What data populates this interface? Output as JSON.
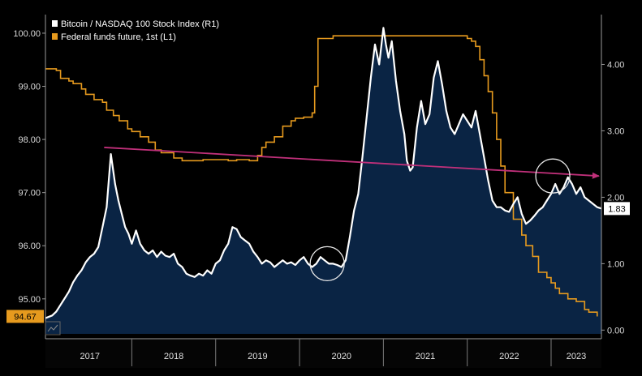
{
  "chart_data": {
    "type": "line",
    "legend_placement": "top-left",
    "legend": [
      {
        "label": "Bitcoin / NASDAQ 100 Stock Index (R1)",
        "color": "#ffffff"
      },
      {
        "label": "Federal funds future, 1st (L1)",
        "color": "#e69a1e"
      }
    ],
    "x_tick_labels": [
      "2017",
      "2018",
      "2019",
      "2020",
      "2021",
      "2022",
      "2023"
    ],
    "xlim": [
      2016.97,
      2023.6
    ],
    "y_left": {
      "ticks": [
        "95.00",
        "96.00",
        "97.00",
        "98.00",
        "99.00",
        "100.00"
      ],
      "range": [
        94.25,
        100.35
      ]
    },
    "y_right": {
      "ticks": [
        "0.00",
        "1.00",
        "2.00",
        "3.00",
        "4.00"
      ],
      "range": [
        -0.13,
        4.75
      ]
    },
    "left_last_value": "94.67",
    "right_last_value": "1.83",
    "colors": {
      "background": "#000000",
      "area_fill": "#0a2444",
      "btc_line": "#ffffff",
      "fed_line": "#e69a1e",
      "trend_line": "#c0307a",
      "left_badge": "#e69a1e",
      "right_badge": "#ffffff"
    },
    "series": [
      {
        "name": "Bitcoin / NASDAQ 100 Stock Index (R1)",
        "axis": "right",
        "x": [
          2016.97,
          2017.05,
          2017.1,
          2017.15,
          2017.2,
          2017.25,
          2017.3,
          2017.35,
          2017.4,
          2017.45,
          2017.5,
          2017.55,
          2017.6,
          2017.65,
          2017.7,
          2017.75,
          2017.8,
          2017.84,
          2017.88,
          2017.92,
          2017.96,
          2018.0,
          2018.05,
          2018.1,
          2018.15,
          2018.2,
          2018.25,
          2018.3,
          2018.35,
          2018.4,
          2018.45,
          2018.5,
          2018.55,
          2018.6,
          2018.65,
          2018.7,
          2018.75,
          2018.8,
          2018.85,
          2018.9,
          2018.95,
          2019.0,
          2019.05,
          2019.1,
          2019.15,
          2019.2,
          2019.25,
          2019.3,
          2019.35,
          2019.4,
          2019.45,
          2019.5,
          2019.55,
          2019.6,
          2019.65,
          2019.7,
          2019.75,
          2019.8,
          2019.85,
          2019.9,
          2019.95,
          2020.0,
          2020.05,
          2020.1,
          2020.15,
          2020.2,
          2020.25,
          2020.3,
          2020.35,
          2020.4,
          2020.45,
          2020.5,
          2020.55,
          2020.6,
          2020.65,
          2020.7,
          2020.75,
          2020.8,
          2020.85,
          2020.9,
          2020.95,
          2021.0,
          2021.03,
          2021.06,
          2021.1,
          2021.15,
          2021.2,
          2021.25,
          2021.28,
          2021.32,
          2021.35,
          2021.4,
          2021.45,
          2021.5,
          2021.55,
          2021.6,
          2021.65,
          2021.7,
          2021.75,
          2021.8,
          2021.85,
          2021.9,
          2021.95,
          2022.0,
          2022.05,
          2022.1,
          2022.15,
          2022.2,
          2022.25,
          2022.3,
          2022.35,
          2022.4,
          2022.45,
          2022.5,
          2022.55,
          2022.6,
          2022.65,
          2022.7,
          2022.75,
          2022.8,
          2022.85,
          2022.9,
          2022.95,
          2023.0,
          2023.05,
          2023.1,
          2023.15,
          2023.2,
          2023.25,
          2023.3,
          2023.35,
          2023.4,
          2023.45,
          2023.5,
          2023.55,
          2023.6
        ],
        "values": [
          0.18,
          0.22,
          0.28,
          0.38,
          0.48,
          0.58,
          0.72,
          0.82,
          0.9,
          1.02,
          1.1,
          1.15,
          1.25,
          1.55,
          1.85,
          2.65,
          2.2,
          1.95,
          1.75,
          1.55,
          1.45,
          1.3,
          1.5,
          1.3,
          1.2,
          1.15,
          1.2,
          1.1,
          1.18,
          1.12,
          1.1,
          1.15,
          1.0,
          0.95,
          0.85,
          0.82,
          0.8,
          0.85,
          0.82,
          0.9,
          0.85,
          1.0,
          1.05,
          1.2,
          1.3,
          1.55,
          1.52,
          1.4,
          1.35,
          1.3,
          1.18,
          1.1,
          1.0,
          1.05,
          1.02,
          0.95,
          1.0,
          1.05,
          1.0,
          1.02,
          0.98,
          1.05,
          1.1,
          1.0,
          0.95,
          1.0,
          1.1,
          1.05,
          1.0,
          1.0,
          0.98,
          0.95,
          1.05,
          1.4,
          1.8,
          2.05,
          2.6,
          3.2,
          3.8,
          4.3,
          4.0,
          4.55,
          4.3,
          4.1,
          4.35,
          3.75,
          3.3,
          2.95,
          2.55,
          2.4,
          2.45,
          3.05,
          3.45,
          3.1,
          3.25,
          3.8,
          4.05,
          3.7,
          3.3,
          3.05,
          2.95,
          3.1,
          3.25,
          3.15,
          3.05,
          3.3,
          2.95,
          2.6,
          2.25,
          1.95,
          1.85,
          1.85,
          1.8,
          1.78,
          1.9,
          2.0,
          1.75,
          1.6,
          1.65,
          1.72,
          1.8,
          1.85,
          1.95,
          2.05,
          2.2,
          2.05,
          2.15,
          2.3,
          2.2,
          2.05,
          2.15,
          2.0,
          1.95,
          1.9,
          1.85,
          1.83
        ]
      },
      {
        "name": "Federal funds future, 1st (L1)",
        "axis": "left",
        "x": [
          2016.97,
          2017.1,
          2017.15,
          2017.25,
          2017.3,
          2017.4,
          2017.45,
          2017.55,
          2017.65,
          2017.7,
          2017.78,
          2017.85,
          2017.95,
          2018.0,
          2018.1,
          2018.2,
          2018.28,
          2018.35,
          2018.5,
          2018.6,
          2018.75,
          2018.85,
          2018.95,
          2019.05,
          2019.15,
          2019.25,
          2019.4,
          2019.5,
          2019.55,
          2019.6,
          2019.7,
          2019.8,
          2019.9,
          2019.95,
          2020.0,
          2020.05,
          2020.1,
          2020.15,
          2020.18,
          2020.22,
          2020.4,
          2020.6,
          2020.8,
          2021.0,
          2021.2,
          2021.4,
          2021.6,
          2021.8,
          2022.0,
          2022.05,
          2022.1,
          2022.15,
          2022.2,
          2022.25,
          2022.3,
          2022.35,
          2022.4,
          2022.45,
          2022.55,
          2022.65,
          2022.7,
          2022.78,
          2022.85,
          2022.95,
          2023.0,
          2023.05,
          2023.1,
          2023.2,
          2023.3,
          2023.4,
          2023.45,
          2023.55
        ],
        "values": [
          99.33,
          99.3,
          99.15,
          99.1,
          99.05,
          98.95,
          98.85,
          98.75,
          98.7,
          98.55,
          98.45,
          98.35,
          98.2,
          98.15,
          98.05,
          97.95,
          97.8,
          97.75,
          97.65,
          97.6,
          97.6,
          97.62,
          97.62,
          97.62,
          97.6,
          97.62,
          97.6,
          97.7,
          97.85,
          97.95,
          98.05,
          98.25,
          98.35,
          98.4,
          98.4,
          98.42,
          98.42,
          98.5,
          99.0,
          99.9,
          99.95,
          99.95,
          99.95,
          99.95,
          99.95,
          99.95,
          99.95,
          99.95,
          99.9,
          99.85,
          99.75,
          99.5,
          99.2,
          98.9,
          98.5,
          98.0,
          97.5,
          97.0,
          96.5,
          96.2,
          96.0,
          95.8,
          95.5,
          95.4,
          95.3,
          95.2,
          95.1,
          95.0,
          94.95,
          94.8,
          94.75,
          94.67
        ]
      }
    ],
    "annotations": [
      {
        "type": "trend-arrow",
        "from": [
          2017.67,
          2.75
        ],
        "to": [
          2023.57,
          2.32
        ]
      },
      {
        "type": "circle-marker",
        "at": [
          2020.33,
          1.0
        ]
      },
      {
        "type": "circle-marker",
        "at": [
          2023.02,
          2.32
        ]
      }
    ]
  }
}
